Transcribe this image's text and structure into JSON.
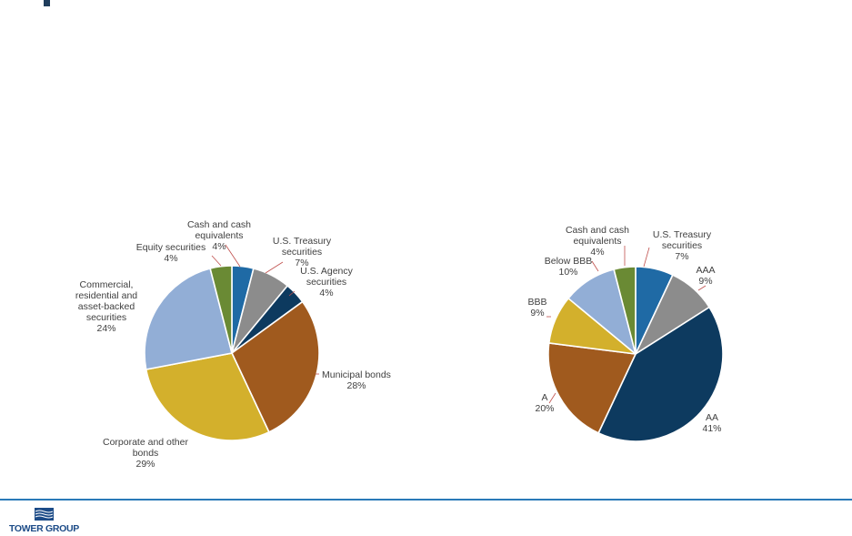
{
  "header": {
    "bullet_text": ""
  },
  "colors": {
    "blue": "#1f6aa5",
    "gray": "#8c8c8c",
    "navy": "#0d3a5f",
    "brown": "#a05a1e",
    "gold": "#d3b02c",
    "lightblue": "#92aed6",
    "olive": "#6a8a34",
    "leader": "#c0504d",
    "footer_line": "#2a7ab8",
    "logo": "#1c4b87"
  },
  "chart_data": [
    {
      "type": "pie",
      "title": "",
      "slices": [
        {
          "label": "Cash and cash equivalents",
          "label_lines": [
            "Cash and cash",
            "equivalents",
            "4%"
          ],
          "value": 4,
          "color": "#1f6aa5"
        },
        {
          "label": "U.S. Treasury securities",
          "label_lines": [
            "U.S. Treasury",
            "securities",
            "7%"
          ],
          "value": 7,
          "color": "#8c8c8c"
        },
        {
          "label": "U.S. Agency securities",
          "label_lines": [
            "U.S. Agency",
            "securities",
            "4%"
          ],
          "value": 4,
          "color": "#0d3a5f"
        },
        {
          "label": "Municipal bonds",
          "label_lines": [
            "Municipal bonds",
            "28%"
          ],
          "value": 28,
          "color": "#a05a1e"
        },
        {
          "label": "Corporate and other bonds",
          "label_lines": [
            "Corporate and other",
            "bonds",
            "29%"
          ],
          "value": 29,
          "color": "#d3b02c"
        },
        {
          "label": "Commercial, residential and asset-backed securities",
          "label_lines": [
            "Commercial,",
            "residential and",
            "asset-backed",
            "securities",
            "24%"
          ],
          "value": 24,
          "color": "#92aed6"
        },
        {
          "label": "Equity securities",
          "label_lines": [
            "Equity securities",
            "4%"
          ],
          "value": 4,
          "color": "#6a8a34"
        }
      ]
    },
    {
      "type": "pie",
      "title": "",
      "slices": [
        {
          "label": "U.S. Treasury securities",
          "label_lines": [
            "U.S. Treasury",
            "securities",
            "7%"
          ],
          "value": 7,
          "color": "#1f6aa5"
        },
        {
          "label": "AAA",
          "label_lines": [
            "AAA",
            "9%"
          ],
          "value": 9,
          "color": "#8c8c8c"
        },
        {
          "label": "AA",
          "label_lines": [
            "AA",
            "41%"
          ],
          "value": 41,
          "color": "#0d3a5f"
        },
        {
          "label": "A",
          "label_lines": [
            "A",
            "20%"
          ],
          "value": 20,
          "color": "#a05a1e"
        },
        {
          "label": "BBB",
          "label_lines": [
            "BBB",
            "9%"
          ],
          "value": 9,
          "color": "#d3b02c"
        },
        {
          "label": "Below BBB",
          "label_lines": [
            "Below BBB",
            "10%"
          ],
          "value": 10,
          "color": "#92aed6"
        },
        {
          "label": "Cash and cash equivalents",
          "label_lines": [
            "Cash and cash",
            "equivalents",
            "4%"
          ],
          "value": 4,
          "color": "#6a8a34"
        }
      ]
    }
  ],
  "footer": {
    "logo_text": "TOWER GROUP"
  }
}
